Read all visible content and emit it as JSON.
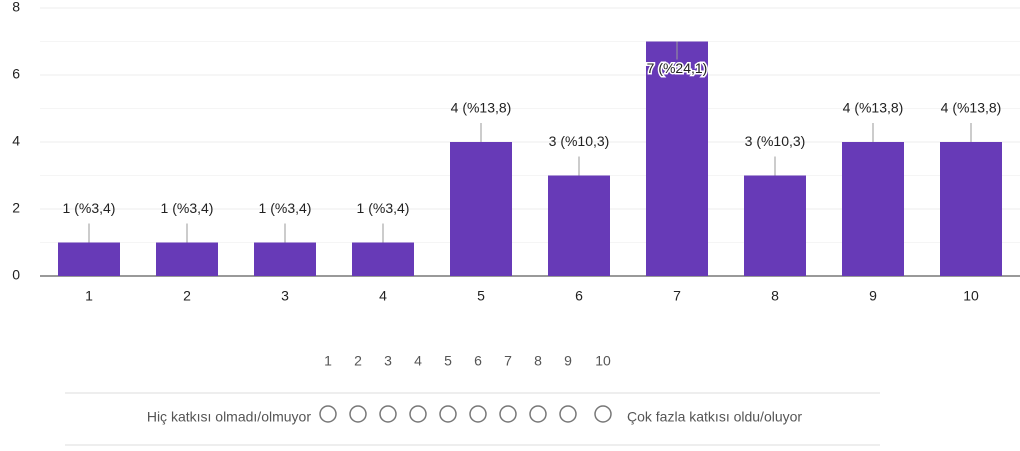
{
  "chart_data": {
    "type": "bar",
    "categories": [
      "1",
      "2",
      "3",
      "4",
      "5",
      "6",
      "7",
      "8",
      "9",
      "10"
    ],
    "values": [
      1,
      1,
      1,
      1,
      4,
      3,
      7,
      3,
      4,
      4
    ],
    "value_labels": [
      "1 (%3,4)",
      "1 (%3,4)",
      "1 (%3,4)",
      "1 (%3,4)",
      "4 (%13,8)",
      "3 (%10,3)",
      "7 (%24,1)",
      "3 (%10,3)",
      "4 (%13,8)",
      "4 (%13,8)"
    ],
    "color": "#673ab7",
    "ylim": [
      0,
      8
    ],
    "yticks": [
      0,
      2,
      4,
      6,
      8
    ],
    "grid": true
  },
  "scale": {
    "numbers": [
      1,
      2,
      3,
      4,
      5,
      6,
      7,
      8,
      9,
      10
    ],
    "left_label": "Hiç katkısı olmadı/olmuyor",
    "right_label": "Çok fazla katkısı oldu/oluyor"
  }
}
